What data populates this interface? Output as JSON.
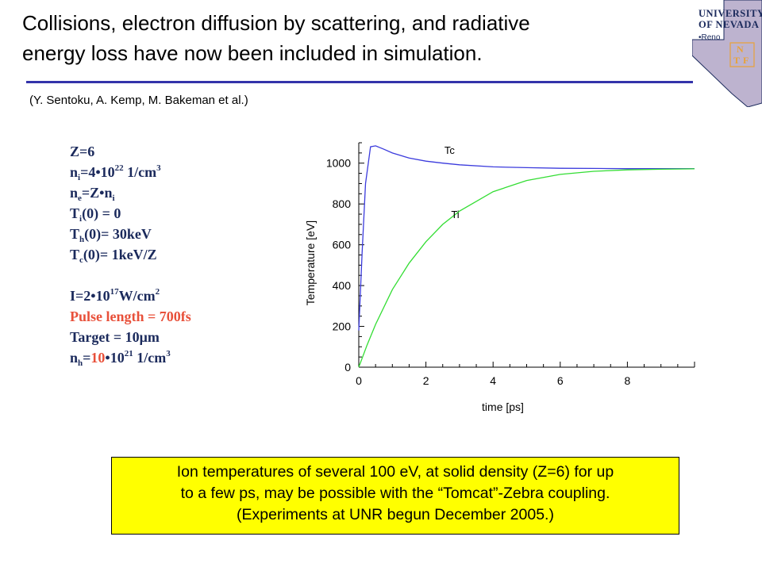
{
  "slide": {
    "title_line1": "Collisions, electron diffusion by scattering, and radiative",
    "title_line2": "energy loss have now been included in simulation.",
    "citation": "(Y. Sentoku, A. Kemp, M. Bakeman et al.)",
    "logo": {
      "line1": "UNIVERSITY",
      "line2": "OF NEVADA",
      "line3": "Reno",
      "mark": "NTF"
    },
    "params": {
      "z": "Z=6",
      "ni_base": "n",
      "ni_sub": "i",
      "ni_eq": "=4•10",
      "ni_sup": "22",
      "ni_unit": " 1/cm",
      "ni_unit_sup": "3",
      "ne_base": "n",
      "ne_sub": "e",
      "ne_eq": "=Z•n",
      "ne_sub2": "i",
      "ti_base": "T",
      "ti_sub": "i",
      "ti_eq": "(0) = 0",
      "th_base": "T",
      "th_sub": "h",
      "th_eq": "(0)= 30keV",
      "tc_base": "T",
      "tc_sub": "c",
      "tc_eq": "(0)= 1keV/Z",
      "i_text": "I=2•10",
      "i_sup": "17",
      "i_unit": "W/cm",
      "i_unit_sup": "2",
      "pulse": "Pulse length = 700fs",
      "target_prefix": "Target = 10",
      "target_mu": "μ",
      "target_unit": "m",
      "nh_base": "n",
      "nh_sub": "h",
      "nh_eq": "=",
      "nh_red": "10",
      "nh_rest": "•10",
      "nh_sup": "21",
      "nh_unit": " 1/cm",
      "nh_unit_sup": "3"
    },
    "callout": {
      "line1": "Ion temperatures of several 100 eV, at solid density (Z=6) for up",
      "line2": "to a few ps, may be possible with the “Tomcat”-Zebra coupling.",
      "line3": "(Experiments at UNR begun December 2005.)"
    },
    "colors": {
      "title_rule": "#3333aa",
      "params_text": "#1b2a5c",
      "highlight_red": "#e8503a",
      "callout_bg": "#ffff00",
      "tc_line": "#3b3bdd",
      "ti_line": "#33dd33"
    }
  },
  "chart_data": {
    "type": "line",
    "xlabel": "time [ps]",
    "ylabel": "Temperature [eV]",
    "xlim": [
      0,
      10
    ],
    "ylim": [
      0,
      1100
    ],
    "xticks": [
      0,
      2,
      4,
      6,
      8
    ],
    "yticks": [
      0,
      200,
      400,
      600,
      800,
      1000
    ],
    "grid": false,
    "series": [
      {
        "name": "Tc",
        "x": [
          0,
          0.1,
          0.2,
          0.35,
          0.5,
          0.75,
          1,
          1.5,
          2,
          2.5,
          3,
          4,
          5,
          6,
          7,
          8,
          9,
          10
        ],
        "values": [
          180,
          560,
          900,
          1080,
          1085,
          1068,
          1050,
          1025,
          1010,
          1000,
          992,
          982,
          978,
          975,
          974,
          973,
          973,
          973
        ]
      },
      {
        "name": "Ti",
        "x": [
          0,
          0.25,
          0.5,
          1,
          1.5,
          2,
          2.5,
          3,
          4,
          5,
          6,
          7,
          8,
          9,
          10
        ],
        "values": [
          0,
          110,
          210,
          380,
          510,
          615,
          700,
          765,
          860,
          915,
          945,
          960,
          967,
          970,
          972
        ]
      }
    ]
  }
}
